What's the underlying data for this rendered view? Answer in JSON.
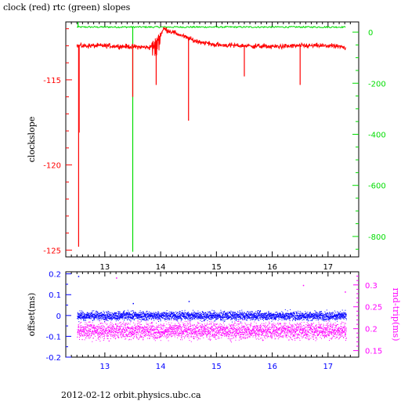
{
  "title": "clock (red) rtc (green) slopes",
  "footer": "2012-02-12  orbit.physics.ubc.ca",
  "colors": {
    "clock": "#ff0000",
    "rtc": "#00dd00",
    "offset": "#0000ff",
    "rndtrip": "#ff00ff",
    "frame": "#000000"
  },
  "chart_data": [
    {
      "type": "line",
      "xlim": [
        12.3,
        17.55
      ],
      "x_ticks": [
        "13",
        "14",
        "15",
        "16",
        "17"
      ],
      "ylabel": "clockslope",
      "ylim": [
        -125.4,
        -111.6
      ],
      "y_ticks": [
        "-115",
        "-120",
        "-125"
      ],
      "y2lim": [
        -880,
        40
      ],
      "y2_ticks": [
        "0",
        "-200",
        "-400",
        "-600",
        "-800"
      ],
      "series": [
        {
          "name": "clock",
          "axis": "left",
          "baseline": [
            [
              12.5,
              -113.0
            ],
            [
              13.0,
              -113.0
            ],
            [
              13.5,
              -113.05
            ],
            [
              13.8,
              -113.1
            ],
            [
              14.0,
              -112.4
            ],
            [
              14.05,
              -112.0
            ],
            [
              14.3,
              -112.3
            ],
            [
              14.6,
              -112.7
            ],
            [
              15.0,
              -112.95
            ],
            [
              15.5,
              -113.0
            ],
            [
              16.0,
              -113.05
            ],
            [
              16.5,
              -113.0
            ],
            [
              17.0,
              -113.0
            ],
            [
              17.32,
              -113.1
            ]
          ],
          "spikes": [
            [
              12.53,
              -124.8
            ],
            [
              12.54,
              -118.1
            ],
            [
              13.5,
              -116.0
            ],
            [
              13.92,
              -115.3
            ],
            [
              14.5,
              -117.4
            ],
            [
              15.5,
              -114.8
            ],
            [
              16.5,
              -115.3
            ]
          ]
        },
        {
          "name": "rtc",
          "axis": "right",
          "level": 20,
          "x_range": [
            12.5,
            17.32
          ],
          "spikes": [
            [
              12.52,
              40
            ],
            [
              13.5,
              -860
            ]
          ]
        }
      ]
    },
    {
      "type": "scatter",
      "xlim": [
        12.3,
        17.55
      ],
      "x_ticks": [
        "13",
        "14",
        "15",
        "16",
        "17"
      ],
      "ylabel": "offset(ms)",
      "ylim": [
        -0.2,
        0.21
      ],
      "y_ticks": [
        "0.2",
        "0.1",
        "0",
        "-0.1",
        "-0.2"
      ],
      "y2label": "rnd-trip(ms)",
      "y2lim": [
        0.135,
        0.33
      ],
      "y2_ticks": [
        "0.3",
        "0.25",
        "0.2",
        "0.15"
      ],
      "series": [
        {
          "name": "offset",
          "axis": "left",
          "x_range": [
            12.5,
            17.32
          ],
          "center": 0.0,
          "spread": 0.018,
          "outliers": [
            [
              12.52,
              0.19
            ],
            [
              13.5,
              0.06
            ],
            [
              14.5,
              0.07
            ]
          ]
        },
        {
          "name": "rnd-trip",
          "axis": "right",
          "x_range": [
            12.5,
            17.32
          ],
          "center": 0.196,
          "spread": 0.016,
          "outliers": [
            [
              13.2,
              0.317
            ],
            [
              16.55,
              0.3
            ],
            [
              17.3,
              0.285
            ]
          ]
        }
      ]
    }
  ]
}
